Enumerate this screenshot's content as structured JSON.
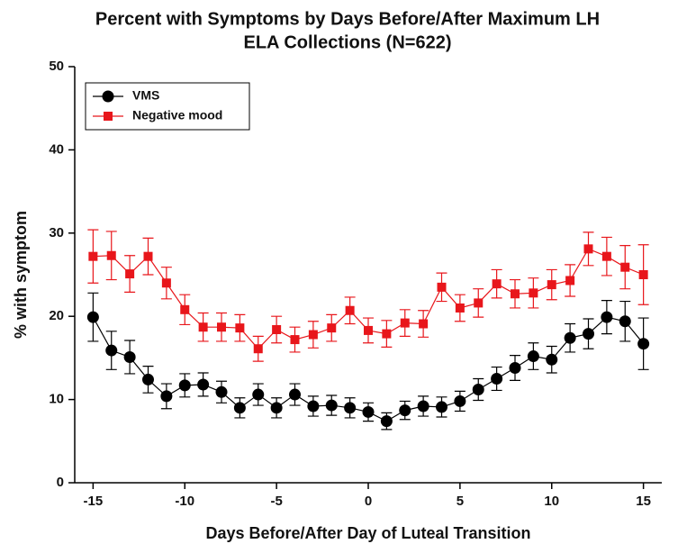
{
  "chart_data": {
    "type": "line",
    "title": "Percent with Symptoms by Days Before/After Maximum LH",
    "subtitle": "ELA Collections (N=622)",
    "x_label": "Days Before/After Day of Luteal Transition",
    "y_label": "% with symptom",
    "x": [
      -15,
      -14,
      -13,
      -12,
      -11,
      -10,
      -9,
      -8,
      -7,
      -6,
      -5,
      -4,
      -3,
      -2,
      -1,
      0,
      1,
      2,
      3,
      4,
      5,
      6,
      7,
      8,
      9,
      10,
      11,
      12,
      13,
      14,
      15
    ],
    "series": [
      {
        "name": "VMS",
        "color": "#000000",
        "marker": "circle",
        "values": [
          19.9,
          15.9,
          15.1,
          12.4,
          10.4,
          11.7,
          11.8,
          10.9,
          9.0,
          10.6,
          9.0,
          10.6,
          9.2,
          9.3,
          9.0,
          8.5,
          7.4,
          8.7,
          9.2,
          9.1,
          9.8,
          11.2,
          12.5,
          13.8,
          15.2,
          14.8,
          17.4,
          17.9,
          19.9,
          19.4,
          16.7
        ],
        "errors": [
          2.9,
          2.3,
          2.0,
          1.6,
          1.5,
          1.4,
          1.4,
          1.3,
          1.2,
          1.3,
          1.2,
          1.3,
          1.2,
          1.2,
          1.2,
          1.1,
          1.0,
          1.1,
          1.2,
          1.2,
          1.2,
          1.3,
          1.4,
          1.5,
          1.6,
          1.6,
          1.7,
          1.8,
          2.0,
          2.4,
          3.1
        ]
      },
      {
        "name": "Negative mood",
        "color": "#e8161b",
        "marker": "square",
        "values": [
          27.2,
          27.3,
          25.1,
          27.2,
          24.0,
          20.8,
          18.7,
          18.7,
          18.6,
          16.1,
          18.4,
          17.2,
          17.8,
          18.6,
          20.7,
          18.3,
          17.9,
          19.2,
          19.1,
          23.5,
          21.0,
          21.6,
          23.9,
          22.7,
          22.8,
          23.8,
          24.3,
          28.1,
          27.2,
          25.9,
          25.0
        ],
        "errors": [
          3.2,
          2.9,
          2.2,
          2.2,
          1.9,
          1.8,
          1.7,
          1.7,
          1.6,
          1.5,
          1.6,
          1.5,
          1.6,
          1.6,
          1.6,
          1.5,
          1.6,
          1.6,
          1.6,
          1.7,
          1.6,
          1.7,
          1.7,
          1.7,
          1.8,
          1.8,
          1.9,
          2.0,
          2.3,
          2.6,
          3.6
        ]
      }
    ],
    "xlim": [
      -16,
      16
    ],
    "xticks": [
      -15,
      -10,
      -5,
      0,
      5,
      10,
      15
    ],
    "ylim": [
      0,
      50
    ],
    "yticks": [
      0,
      10,
      20,
      30,
      40,
      50
    ],
    "grid": false,
    "legend": "upper left"
  }
}
